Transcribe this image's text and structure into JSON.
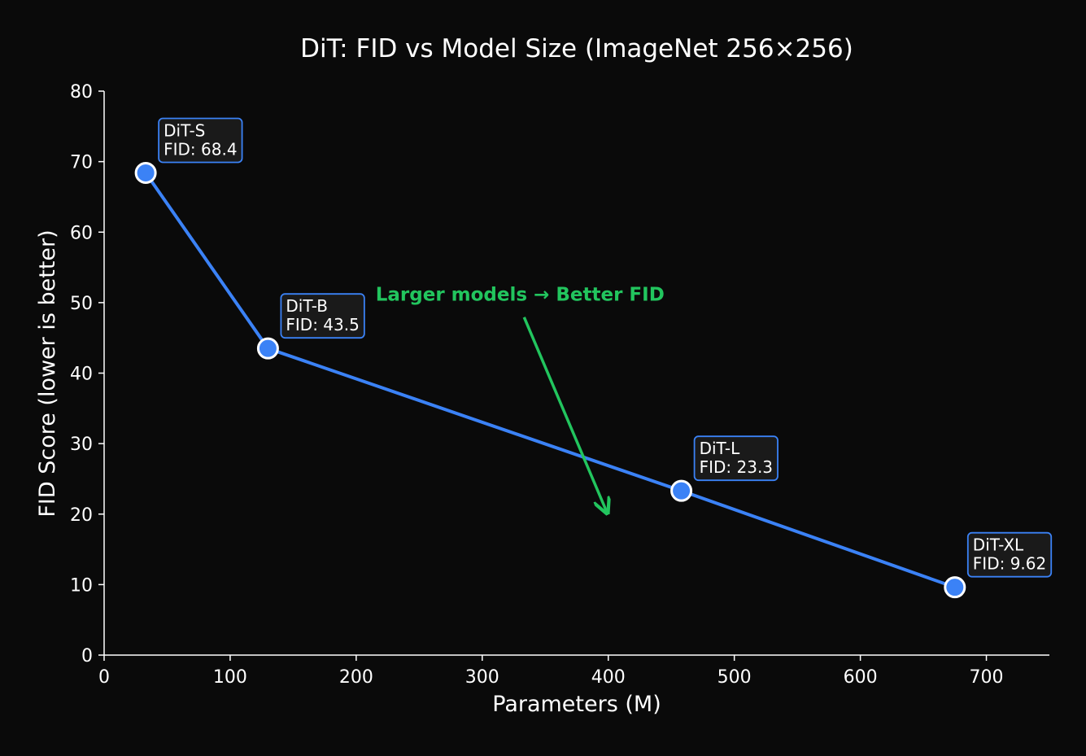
{
  "chart_data": {
    "type": "line",
    "title": "DiT: FID vs Model Size (ImageNet 256×256)",
    "xlabel": "Parameters (M)",
    "ylabel": "FID Score (lower is better)",
    "xlim": [
      0,
      750
    ],
    "ylim": [
      0,
      80
    ],
    "xticks": [
      0,
      100,
      200,
      300,
      400,
      500,
      600,
      700
    ],
    "yticks": [
      0,
      10,
      20,
      30,
      40,
      50,
      60,
      70,
      80
    ],
    "grid": false,
    "series": [
      {
        "color": "#3b82f6",
        "points": [
          {
            "model": "DiT-S",
            "params": 33,
            "fid": 68.4,
            "label": "FID: 68.4"
          },
          {
            "model": "DiT-B",
            "params": 130,
            "fid": 43.5,
            "label": "FID: 43.5"
          },
          {
            "model": "DiT-L",
            "params": 458,
            "fid": 23.3,
            "label": "FID: 23.3"
          },
          {
            "model": "DiT-XL",
            "params": 675,
            "fid": 9.62,
            "label": "FID: 9.62"
          }
        ]
      }
    ],
    "annotation": {
      "text": "Larger models → Better FID",
      "color": "#22c55e",
      "text_at": [
        330,
        50.5
      ],
      "arrow_from": [
        330,
        48.5
      ],
      "arrow_to": [
        400,
        20
      ]
    }
  }
}
